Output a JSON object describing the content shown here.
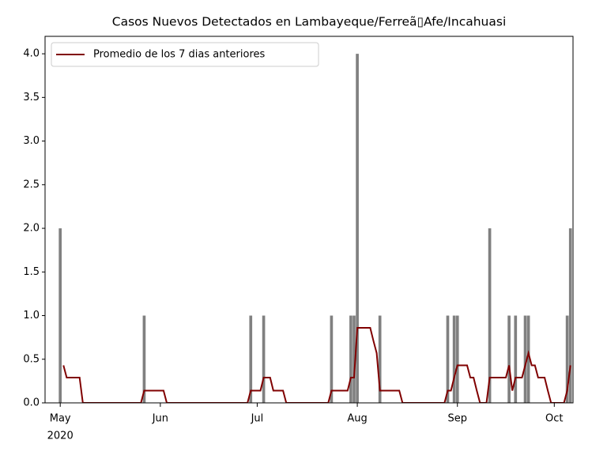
{
  "chart_data": {
    "type": "bar+line",
    "title": "Casos Nuevos Detectados en Lambayeque/Ferreã▯Afe/Incahuasi",
    "xlim": [
      117.3,
      280.8
    ],
    "xticks": [
      {
        "value": 122,
        "label": "May"
      },
      {
        "value": 153,
        "label": "Jun"
      },
      {
        "value": 183,
        "label": "Jul"
      },
      {
        "value": 214,
        "label": "Aug"
      },
      {
        "value": 245,
        "label": "Sep"
      },
      {
        "value": 275,
        "label": "Oct"
      }
    ],
    "xtick_year": "2020",
    "ylim": [
      0,
      4.2
    ],
    "yticks": [
      {
        "value": 0,
        "label": "0.0"
      },
      {
        "value": 0.5,
        "label": "0.5"
      },
      {
        "value": 1,
        "label": "1.0"
      },
      {
        "value": 1.5,
        "label": "1.5"
      },
      {
        "value": 2,
        "label": "2.0"
      },
      {
        "value": 2.5,
        "label": "2.5"
      },
      {
        "value": 3,
        "label": "3.0"
      },
      {
        "value": 3.5,
        "label": "3.5"
      },
      {
        "value": 4,
        "label": "4.0"
      }
    ],
    "grid": false,
    "legend": "upper left",
    "bars": {
      "color": "#808080",
      "x": [
        122,
        148,
        181,
        185,
        206,
        212,
        213,
        214,
        221,
        242,
        244,
        245,
        255,
        261,
        263,
        266,
        267,
        279,
        280
      ],
      "values": [
        2,
        1,
        1,
        1,
        1,
        1,
        1,
        4,
        1,
        1,
        1,
        1,
        2,
        1,
        1,
        1,
        1,
        1,
        2
      ]
    },
    "series": [
      {
        "name": "Promedio de los 7 dias anteriores",
        "color": "#800000",
        "x": [
          123,
          124,
          125,
          126,
          127,
          128,
          129,
          130,
          131,
          132,
          133,
          134,
          135,
          136,
          137,
          138,
          139,
          140,
          141,
          142,
          143,
          144,
          145,
          146,
          147,
          148,
          149,
          150,
          151,
          152,
          153,
          154,
          155,
          156,
          157,
          158,
          159,
          160,
          161,
          162,
          163,
          164,
          165,
          166,
          167,
          168,
          169,
          170,
          171,
          172,
          173,
          174,
          175,
          176,
          177,
          178,
          179,
          180,
          181,
          182,
          183,
          184,
          185,
          186,
          187,
          188,
          189,
          190,
          191,
          192,
          193,
          194,
          195,
          196,
          197,
          198,
          199,
          200,
          201,
          202,
          203,
          204,
          205,
          206,
          207,
          208,
          209,
          210,
          211,
          212,
          213,
          214,
          215,
          216,
          217,
          218,
          219,
          220,
          221,
          222,
          223,
          224,
          225,
          226,
          227,
          228,
          229,
          230,
          231,
          232,
          233,
          234,
          235,
          236,
          237,
          238,
          239,
          240,
          241,
          242,
          243,
          244,
          245,
          246,
          247,
          248,
          249,
          250,
          251,
          252,
          253,
          254,
          255,
          256,
          257,
          258,
          259,
          260,
          261,
          262,
          263,
          264,
          265,
          266,
          267,
          268,
          269,
          270,
          271,
          272,
          273,
          274,
          275,
          276,
          277,
          278,
          279,
          280
        ],
        "values": [
          0.43,
          0.29,
          0.29,
          0.29,
          0.29,
          0.29,
          0,
          0,
          0,
          0,
          0,
          0,
          0,
          0,
          0,
          0,
          0,
          0,
          0,
          0,
          0,
          0,
          0,
          0,
          0,
          0.14,
          0.14,
          0.14,
          0.14,
          0.14,
          0.14,
          0.14,
          0,
          0,
          0,
          0,
          0,
          0,
          0,
          0,
          0,
          0,
          0,
          0,
          0,
          0,
          0,
          0,
          0,
          0,
          0,
          0,
          0,
          0,
          0,
          0,
          0,
          0,
          0.14,
          0.14,
          0.14,
          0.14,
          0.29,
          0.29,
          0.29,
          0.14,
          0.14,
          0.14,
          0.14,
          0,
          0,
          0,
          0,
          0,
          0,
          0,
          0,
          0,
          0,
          0,
          0,
          0,
          0,
          0.14,
          0.14,
          0.14,
          0.14,
          0.14,
          0.14,
          0.29,
          0.29,
          0.86,
          0.86,
          0.86,
          0.86,
          0.86,
          0.71,
          0.57,
          0.14,
          0.14,
          0.14,
          0.14,
          0.14,
          0.14,
          0.14,
          0,
          0,
          0,
          0,
          0,
          0,
          0,
          0,
          0,
          0,
          0,
          0,
          0,
          0,
          0.14,
          0.14,
          0.29,
          0.43,
          0.43,
          0.43,
          0.43,
          0.29,
          0.29,
          0.14,
          0,
          0,
          0,
          0.29,
          0.29,
          0.29,
          0.29,
          0.29,
          0.29,
          0.43,
          0.14,
          0.29,
          0.29,
          0.29,
          0.43,
          0.57,
          0.43,
          0.43,
          0.29,
          0.29,
          0.29,
          0.14,
          0,
          0,
          0,
          0,
          0,
          0.14,
          0.43
        ]
      }
    ]
  }
}
